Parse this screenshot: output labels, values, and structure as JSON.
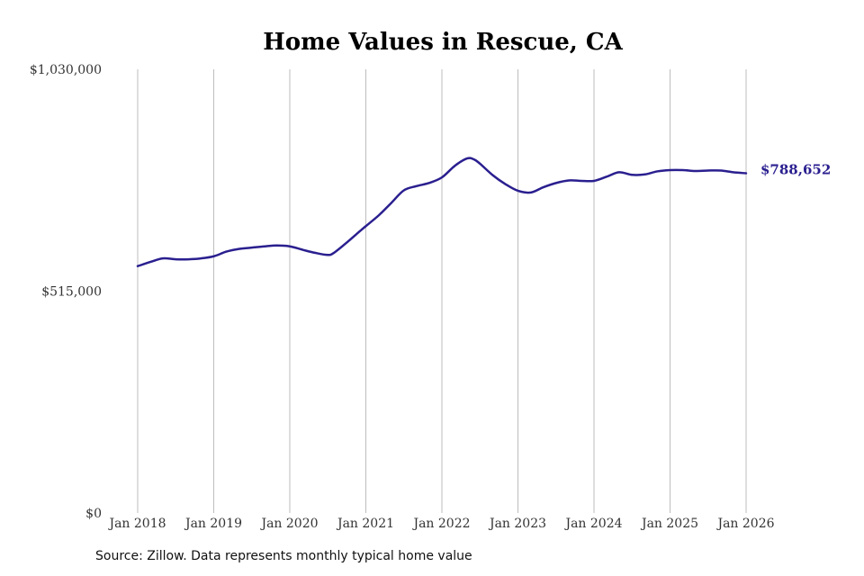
{
  "chart_data": {
    "type": "line",
    "title": "Home Values in Rescue, CA",
    "xlabel": "",
    "ylabel": "",
    "ylim": [
      0,
      1030000
    ],
    "y_ticks": [
      {
        "value": 0,
        "label": "$0"
      },
      {
        "value": 515000,
        "label": "$515,000"
      },
      {
        "value": 1030000,
        "label": "$1,030,000"
      }
    ],
    "x_range": [
      2018.0,
      2026.0
    ],
    "x_ticks": [
      {
        "value": 2018,
        "label": "Jan 2018"
      },
      {
        "value": 2019,
        "label": "Jan 2019"
      },
      {
        "value": 2020,
        "label": "Jan 2020"
      },
      {
        "value": 2021,
        "label": "Jan 2021"
      },
      {
        "value": 2022,
        "label": "Jan 2022"
      },
      {
        "value": 2023,
        "label": "Jan 2023"
      },
      {
        "value": 2024,
        "label": "Jan 2024"
      },
      {
        "value": 2025,
        "label": "Jan 2025"
      },
      {
        "value": 2026,
        "label": "Jan 2026"
      }
    ],
    "grid": "vertical",
    "series": [
      {
        "color": "#2a1f8f",
        "end_label": "$788,652",
        "x": [
          2018.0,
          2018.17,
          2018.33,
          2018.5,
          2018.67,
          2018.83,
          2019.0,
          2019.17,
          2019.33,
          2019.5,
          2019.67,
          2019.83,
          2020.0,
          2020.17,
          2020.33,
          2020.5,
          2020.58,
          2020.75,
          2020.92,
          2021.0,
          2021.17,
          2021.33,
          2021.5,
          2021.67,
          2021.83,
          2022.0,
          2022.17,
          2022.33,
          2022.42,
          2022.5,
          2022.67,
          2022.83,
          2023.0,
          2023.17,
          2023.33,
          2023.5,
          2023.67,
          2023.83,
          2024.0,
          2024.17,
          2024.33,
          2024.5,
          2024.67,
          2024.83,
          2025.0,
          2025.17,
          2025.33,
          2025.5,
          2025.67,
          2025.83,
          2026.0
        ],
        "y": [
          573000,
          583000,
          591000,
          589000,
          589000,
          591000,
          596000,
          607000,
          613000,
          616000,
          619000,
          621000,
          619000,
          611000,
          604000,
          599000,
          604000,
          628000,
          654000,
          666000,
          691000,
          719000,
          749000,
          759000,
          766000,
          779000,
          806000,
          823000,
          821000,
          811000,
          784000,
          764000,
          748000,
          744000,
          756000,
          766000,
          772000,
          771000,
          771000,
          781000,
          791000,
          785000,
          786000,
          793000,
          796000,
          796000,
          794000,
          795000,
          795000,
          791000,
          788652
        ]
      }
    ]
  },
  "footer": {
    "source": "Source: Zillow. Data represents monthly typical home value"
  }
}
